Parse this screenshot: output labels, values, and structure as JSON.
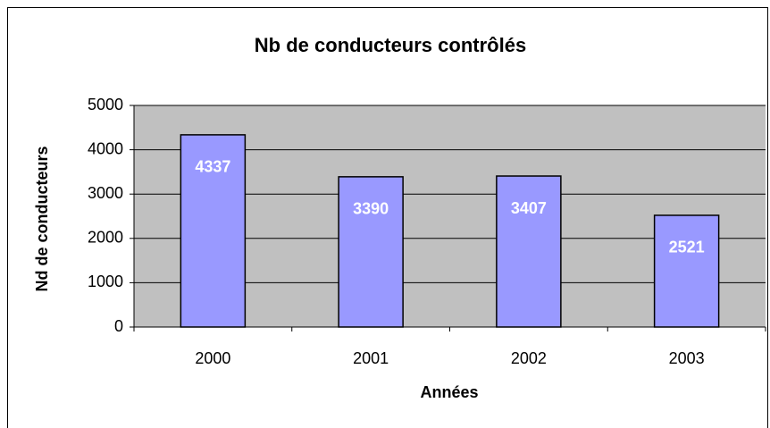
{
  "chart_data": {
    "type": "bar",
    "title": "Nb de conducteurs contrôlés",
    "x_label": "Années",
    "y_label": "Nd de conducteurs",
    "categories": [
      "2000",
      "2001",
      "2002",
      "2003"
    ],
    "values": [
      4337,
      3390,
      3407,
      2521
    ],
    "color": "#9999ff",
    "plot_background": "#c0c0c0",
    "ylim": [
      0,
      5000
    ],
    "yticks": [
      0,
      1000,
      2000,
      3000,
      4000,
      5000
    ],
    "grid": true
  }
}
